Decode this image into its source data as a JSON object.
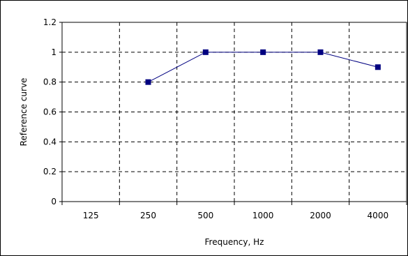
{
  "chart_data": {
    "type": "line",
    "categories": [
      "125",
      "250",
      "500",
      "1000",
      "2000",
      "4000"
    ],
    "series": [
      {
        "values": [
          null,
          0.8,
          1.0,
          1.0,
          1.0,
          0.9
        ]
      }
    ],
    "title": "",
    "xlabel": "Frequency, Hz",
    "ylabel": "Reference curve",
    "ylim": [
      0,
      1.2
    ],
    "yticks": [
      "0",
      "0.2",
      "0.4",
      "0.6",
      "0.8",
      "1",
      "1.2"
    ],
    "grid": true,
    "legend": "none",
    "colors": {
      "series": "#000080",
      "grid": "#000000",
      "axis": "#000000"
    }
  }
}
